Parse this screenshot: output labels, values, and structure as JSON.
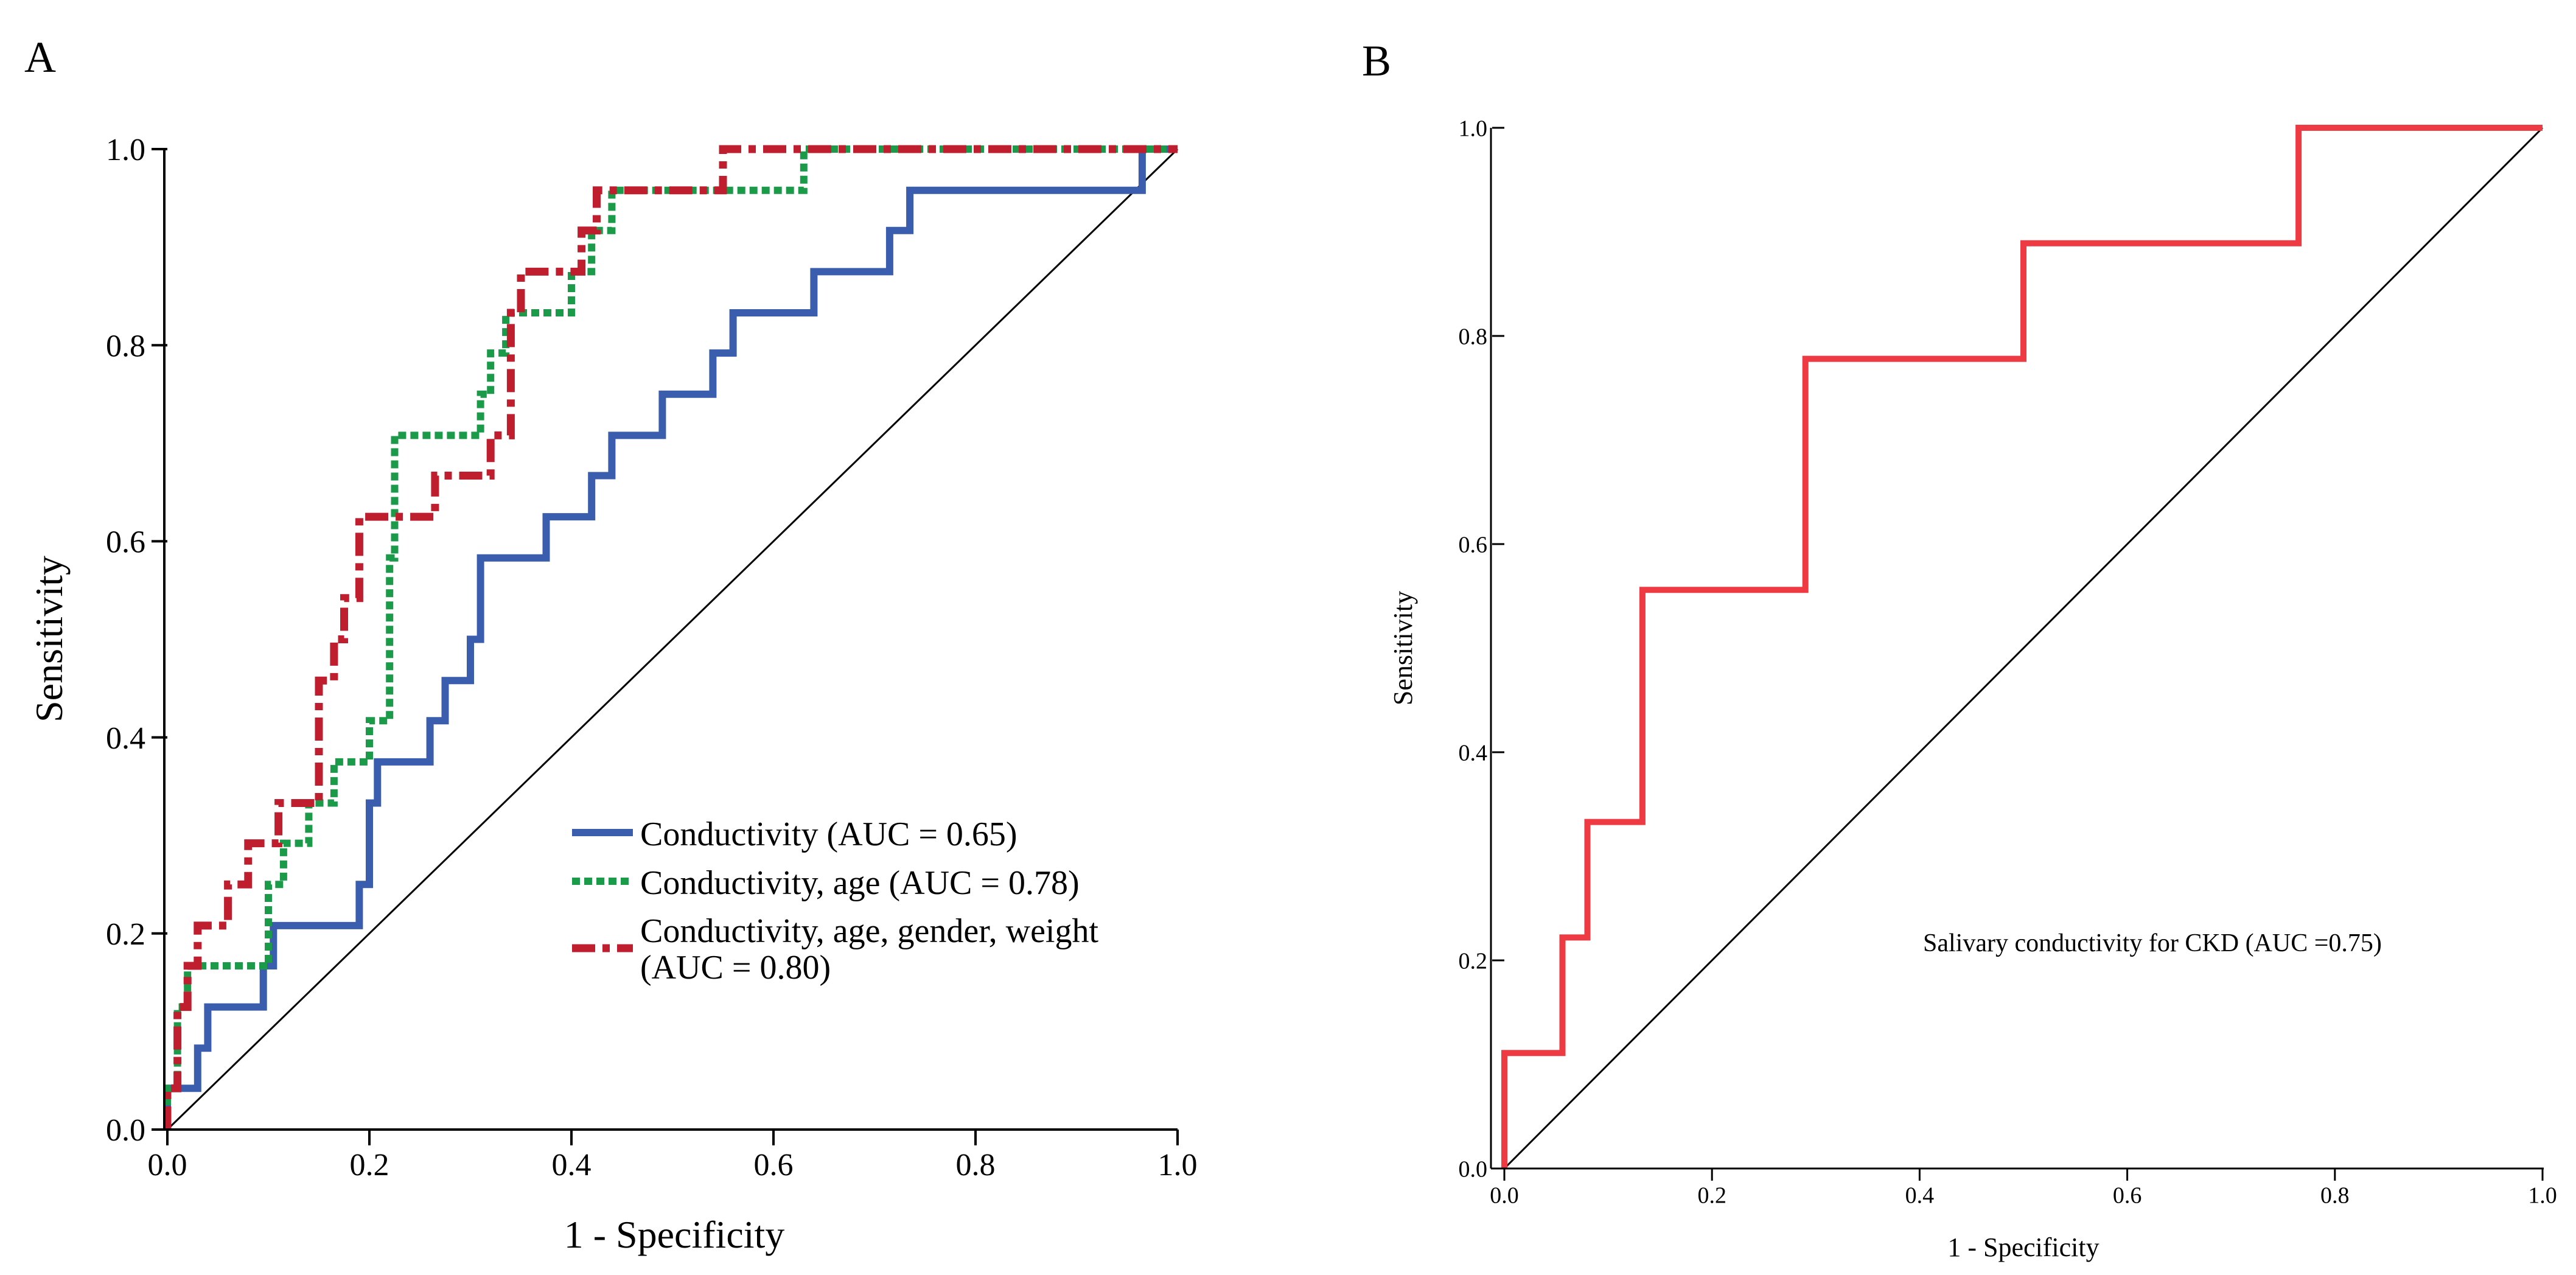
{
  "colors": {
    "conductivity": "#3A5DAE",
    "conductivity_age": "#1B9A4A",
    "conductivity_full": "#BE1E2D",
    "panel_b": "#EE3A42",
    "axis": "#000000",
    "reference": "#000000"
  },
  "chart_data": [
    {
      "type": "line",
      "panel_label": "A",
      "xlabel": "1 - Specificity",
      "ylabel": "Sensitivity",
      "xlim": [
        0,
        1
      ],
      "ylim": [
        0,
        1
      ],
      "xticks": [
        "0.0",
        "0.2",
        "0.4",
        "0.6",
        "0.8",
        "1.0"
      ],
      "yticks": [
        "0.0",
        "0.2",
        "0.4",
        "0.6",
        "0.8",
        "1.0"
      ],
      "grid": false,
      "legend_position": "bottom-right",
      "reference_line": [
        [
          0,
          0
        ],
        [
          1,
          1
        ]
      ],
      "series": [
        {
          "name": "Conductivity (AUC = 0.65)",
          "legend_lines": [
            "Conductivity (AUC = 0.65)"
          ],
          "color_key": "conductivity",
          "style": "solid",
          "points": [
            [
              0,
              0
            ],
            [
              0,
              0.042
            ],
            [
              0.03,
              0.042
            ],
            [
              0.03,
              0.083
            ],
            [
              0.04,
              0.083
            ],
            [
              0.04,
              0.125
            ],
            [
              0.095,
              0.125
            ],
            [
              0.095,
              0.167
            ],
            [
              0.105,
              0.167
            ],
            [
              0.105,
              0.208
            ],
            [
              0.19,
              0.208
            ],
            [
              0.19,
              0.25
            ],
            [
              0.2,
              0.25
            ],
            [
              0.2,
              0.333
            ],
            [
              0.208,
              0.333
            ],
            [
              0.208,
              0.375
            ],
            [
              0.26,
              0.375
            ],
            [
              0.26,
              0.417
            ],
            [
              0.275,
              0.417
            ],
            [
              0.275,
              0.458
            ],
            [
              0.3,
              0.458
            ],
            [
              0.3,
              0.5
            ],
            [
              0.31,
              0.5
            ],
            [
              0.31,
              0.583
            ],
            [
              0.375,
              0.583
            ],
            [
              0.375,
              0.625
            ],
            [
              0.42,
              0.625
            ],
            [
              0.42,
              0.667
            ],
            [
              0.44,
              0.667
            ],
            [
              0.44,
              0.708
            ],
            [
              0.49,
              0.708
            ],
            [
              0.49,
              0.75
            ],
            [
              0.54,
              0.75
            ],
            [
              0.54,
              0.792
            ],
            [
              0.56,
              0.792
            ],
            [
              0.56,
              0.833
            ],
            [
              0.64,
              0.833
            ],
            [
              0.64,
              0.875
            ],
            [
              0.715,
              0.875
            ],
            [
              0.715,
              0.917
            ],
            [
              0.735,
              0.917
            ],
            [
              0.735,
              0.958
            ],
            [
              0.965,
              0.958
            ],
            [
              0.965,
              1.0
            ],
            [
              1.0,
              1.0
            ]
          ]
        },
        {
          "name": "Conductivity, age (AUC = 0.78)",
          "legend_lines": [
            "Conductivity, age (AUC = 0.78)"
          ],
          "color_key": "conductivity_age",
          "style": "dotted",
          "points": [
            [
              0,
              0
            ],
            [
              0,
              0.042
            ],
            [
              0.01,
              0.042
            ],
            [
              0.01,
              0.125
            ],
            [
              0.02,
              0.125
            ],
            [
              0.02,
              0.167
            ],
            [
              0.1,
              0.167
            ],
            [
              0.1,
              0.25
            ],
            [
              0.115,
              0.25
            ],
            [
              0.115,
              0.292
            ],
            [
              0.14,
              0.292
            ],
            [
              0.14,
              0.333
            ],
            [
              0.165,
              0.333
            ],
            [
              0.165,
              0.375
            ],
            [
              0.2,
              0.375
            ],
            [
              0.2,
              0.417
            ],
            [
              0.22,
              0.417
            ],
            [
              0.22,
              0.583
            ],
            [
              0.225,
              0.583
            ],
            [
              0.225,
              0.708
            ],
            [
              0.31,
              0.708
            ],
            [
              0.31,
              0.75
            ],
            [
              0.32,
              0.75
            ],
            [
              0.32,
              0.792
            ],
            [
              0.335,
              0.792
            ],
            [
              0.335,
              0.833
            ],
            [
              0.4,
              0.833
            ],
            [
              0.4,
              0.875
            ],
            [
              0.42,
              0.875
            ],
            [
              0.42,
              0.917
            ],
            [
              0.44,
              0.917
            ],
            [
              0.44,
              0.958
            ],
            [
              0.63,
              0.958
            ],
            [
              0.63,
              1.0
            ],
            [
              1.0,
              1.0
            ]
          ]
        },
        {
          "name": "Conductivity, age, gender, weight (AUC = 0.80)",
          "legend_lines": [
            "Conductivity, age, gender, weight",
            "(AUC = 0.80)"
          ],
          "color_key": "conductivity_full",
          "style": "dashdot",
          "points": [
            [
              0,
              0
            ],
            [
              0,
              0.042
            ],
            [
              0.01,
              0.042
            ],
            [
              0.01,
              0.125
            ],
            [
              0.02,
              0.125
            ],
            [
              0.02,
              0.167
            ],
            [
              0.03,
              0.167
            ],
            [
              0.03,
              0.208
            ],
            [
              0.06,
              0.208
            ],
            [
              0.06,
              0.25
            ],
            [
              0.08,
              0.25
            ],
            [
              0.08,
              0.292
            ],
            [
              0.11,
              0.292
            ],
            [
              0.11,
              0.333
            ],
            [
              0.15,
              0.333
            ],
            [
              0.15,
              0.458
            ],
            [
              0.165,
              0.458
            ],
            [
              0.165,
              0.5
            ],
            [
              0.175,
              0.5
            ],
            [
              0.175,
              0.542
            ],
            [
              0.19,
              0.542
            ],
            [
              0.19,
              0.625
            ],
            [
              0.265,
              0.625
            ],
            [
              0.265,
              0.667
            ],
            [
              0.32,
              0.667
            ],
            [
              0.32,
              0.708
            ],
            [
              0.34,
              0.708
            ],
            [
              0.34,
              0.833
            ],
            [
              0.35,
              0.833
            ],
            [
              0.35,
              0.875
            ],
            [
              0.41,
              0.875
            ],
            [
              0.41,
              0.917
            ],
            [
              0.425,
              0.917
            ],
            [
              0.425,
              0.958
            ],
            [
              0.55,
              0.958
            ],
            [
              0.55,
              1.0
            ],
            [
              1.0,
              1.0
            ]
          ]
        }
      ]
    },
    {
      "type": "line",
      "panel_label": "B",
      "xlabel": "1 - Specificity",
      "ylabel": "Sensitivity",
      "xlim": [
        0,
        1
      ],
      "ylim": [
        0,
        1
      ],
      "xticks": [
        "0.0",
        "0.2",
        "0.4",
        "0.6",
        "0.8",
        "1.0"
      ],
      "yticks": [
        "0.0",
        "0.2",
        "0.4",
        "0.6",
        "0.8",
        "1.0"
      ],
      "grid": false,
      "reference_line": [
        [
          0,
          0
        ],
        [
          1,
          1
        ]
      ],
      "annotation": "Salivary conductivity for CKD (AUC =0.75)",
      "series": [
        {
          "name": "Salivary conductivity for CKD",
          "color_key": "panel_b",
          "style": "solid",
          "points": [
            [
              0,
              0
            ],
            [
              0,
              0.111
            ],
            [
              0.056,
              0.111
            ],
            [
              0.056,
              0.222
            ],
            [
              0.08,
              0.222
            ],
            [
              0.08,
              0.333
            ],
            [
              0.133,
              0.333
            ],
            [
              0.133,
              0.556
            ],
            [
              0.29,
              0.556
            ],
            [
              0.29,
              0.778
            ],
            [
              0.5,
              0.778
            ],
            [
              0.5,
              0.889
            ],
            [
              0.765,
              0.889
            ],
            [
              0.765,
              1.0
            ],
            [
              1.0,
              1.0
            ]
          ]
        }
      ]
    }
  ]
}
